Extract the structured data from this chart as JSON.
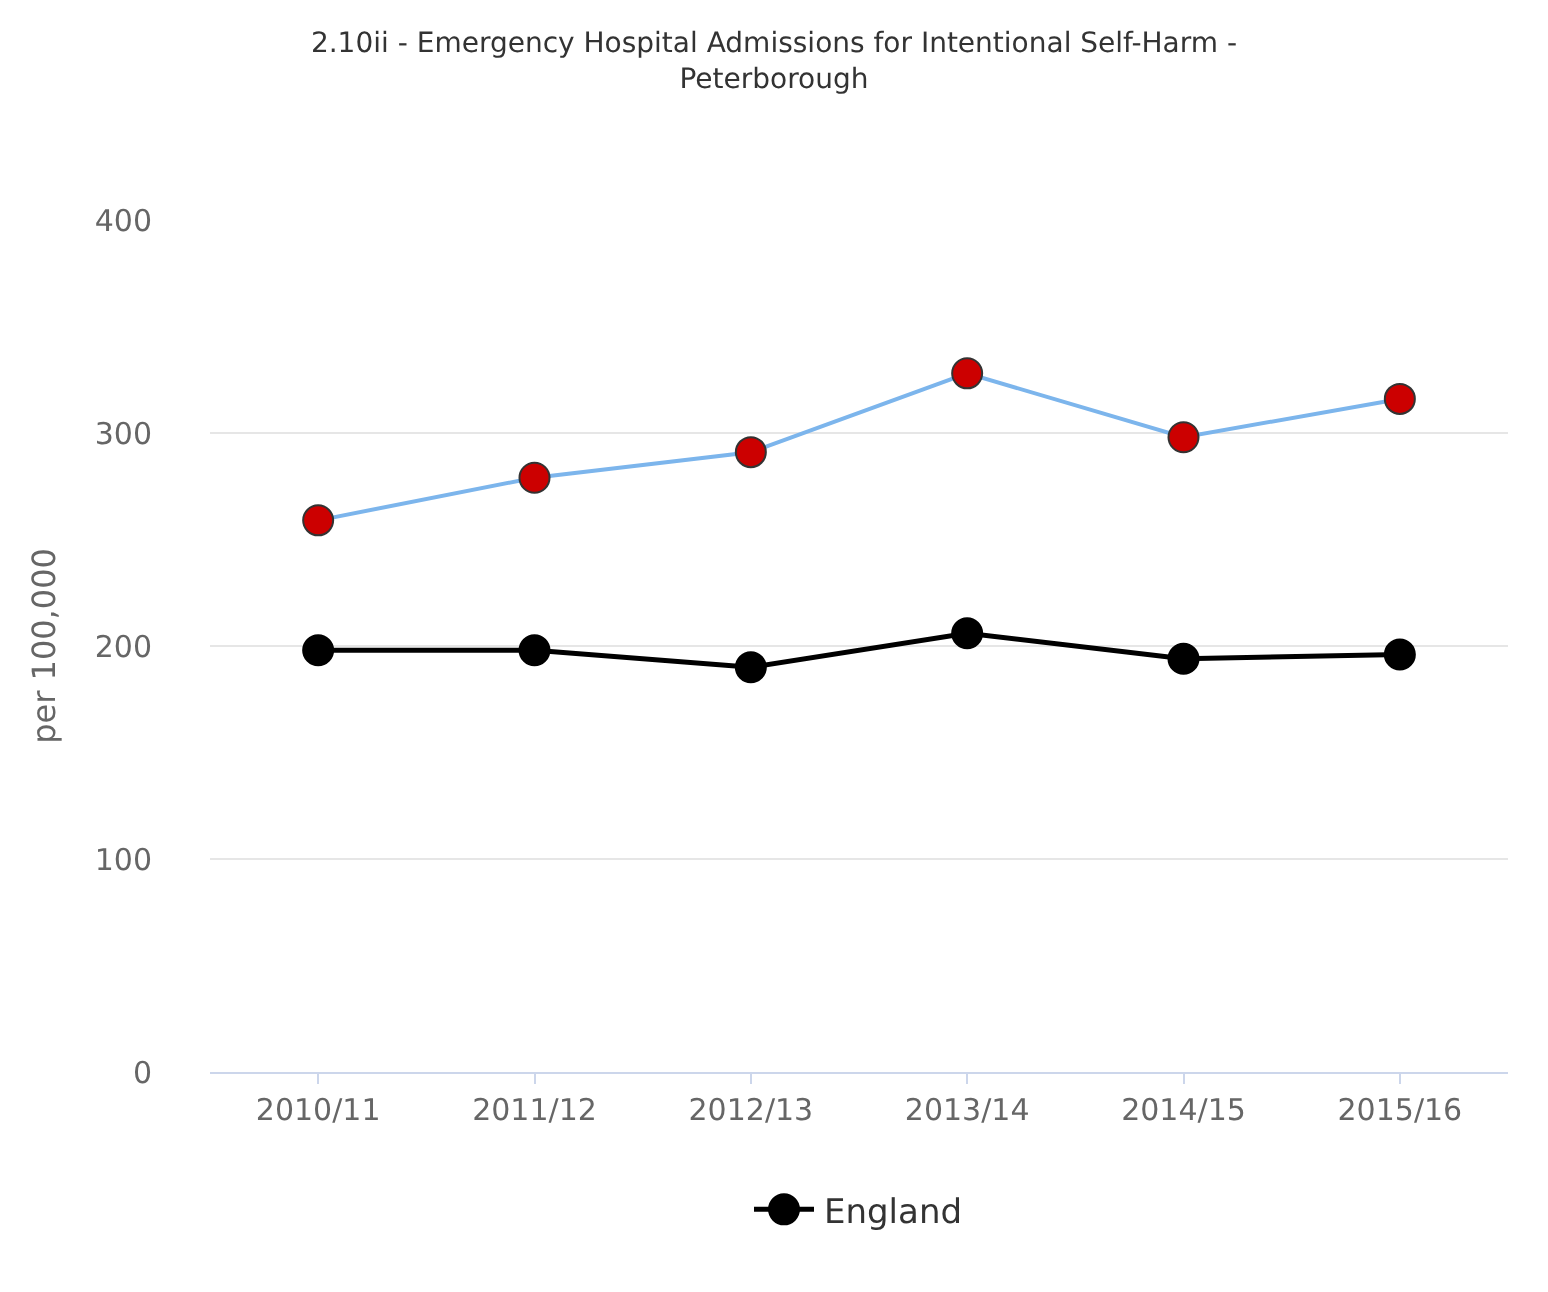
{
  "chart_data": {
    "type": "line",
    "title": "2.10ii - Emergency Hospital Admissions for Intentional Self-Harm -\nPeterborough",
    "ylabel": "per 100,000",
    "categories": [
      "2010/11",
      "2011/12",
      "2012/13",
      "2013/14",
      "2014/15",
      "2015/16"
    ],
    "series": [
      {
        "color": "#7cb5ec",
        "colors": [
          "#cc0000",
          "#cc0000",
          "#cc0000",
          "#cc0000",
          "#cc0000",
          "#cc0000"
        ],
        "values": [
          259,
          279,
          291,
          328,
          298,
          316
        ]
      },
      {
        "name": "England",
        "color": "#000000",
        "values": [
          198,
          198,
          190,
          206,
          194,
          196
        ]
      }
    ],
    "ylim": [
      0,
      400
    ],
    "yticks": [
      0,
      100,
      200,
      300,
      400
    ],
    "grid": "y",
    "legend": "bottom",
    "marker": "circle",
    "line_style": "solid"
  }
}
